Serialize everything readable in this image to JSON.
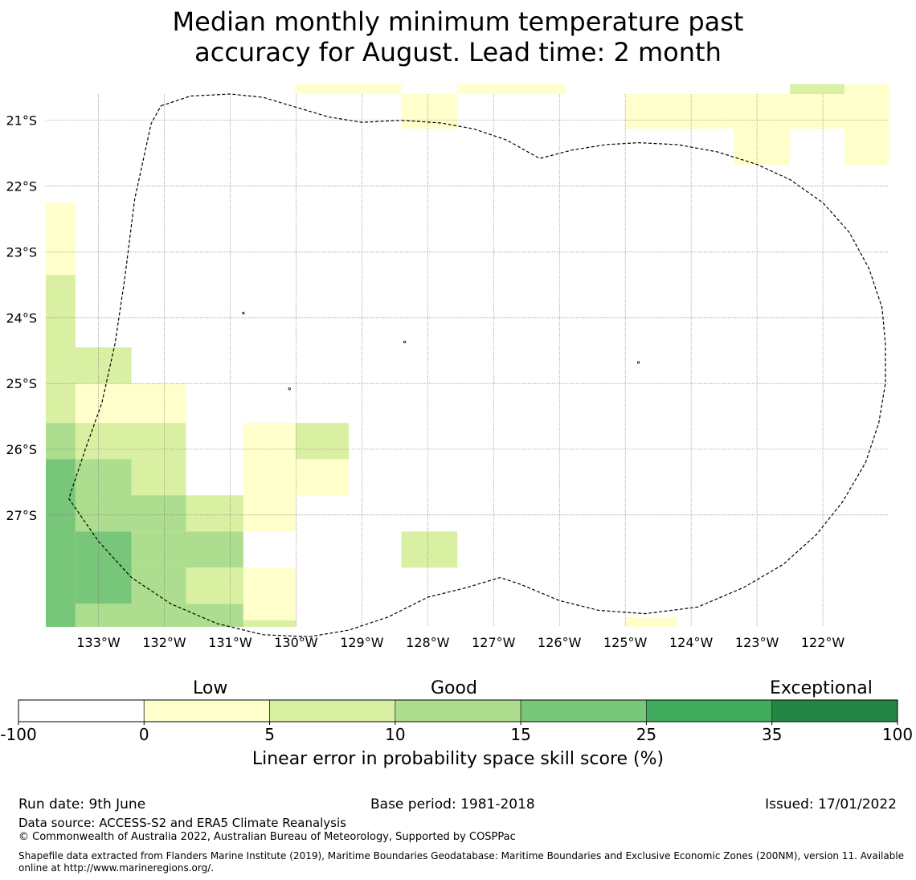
{
  "title": {
    "line1": "Median monthly minimum temperature past",
    "line2": "accuracy for August. Lead time: 2 month"
  },
  "map": {
    "lat_labels": [
      "21°S",
      "22°S",
      "23°S",
      "24°S",
      "25°S",
      "26°S",
      "27°S"
    ],
    "lon_labels": [
      "133°W",
      "132°W",
      "131°W",
      "130°W",
      "129°W",
      "128°W",
      "127°W",
      "126°W",
      "125°W",
      "124°W",
      "123°W",
      "122°W"
    ],
    "lon_range": [
      -133.8,
      -121.0
    ],
    "lat_range": [
      -20.6,
      -28.7
    ],
    "category_colors": [
      "#ffffff",
      "#ffffcc",
      "#d9f0a3",
      "#addd8e",
      "#78c679",
      "#41ab5d",
      "#238443"
    ],
    "cells": [
      {
        "lon0": -130.0,
        "lon1": -128.4,
        "lat0": -20.6,
        "lat1": -20.45,
        "cat": 1
      },
      {
        "lon0": -128.4,
        "lon1": -127.55,
        "lat0": -20.6,
        "lat1": -21.13,
        "cat": 1
      },
      {
        "lon0": -127.55,
        "lon1": -125.9,
        "lat0": -20.45,
        "lat1": -20.6,
        "cat": 1
      },
      {
        "lon0": -125.0,
        "lon1": -123.35,
        "lat0": -20.6,
        "lat1": -21.13,
        "cat": 1
      },
      {
        "lon0": -123.35,
        "lon1": -122.5,
        "lat0": -20.6,
        "lat1": -21.68,
        "cat": 1
      },
      {
        "lon0": -122.5,
        "lon1": -121.67,
        "lat0": -20.6,
        "lat1": -21.13,
        "cat": 1
      },
      {
        "lon0": -121.67,
        "lon1": -121.0,
        "lat0": -20.45,
        "lat1": -21.68,
        "cat": 1
      },
      {
        "lon0": -122.5,
        "lon1": -121.67,
        "lat0": -20.45,
        "lat1": -20.6,
        "cat": 2
      },
      {
        "lon0": -133.8,
        "lon1": -133.35,
        "lat0": -22.25,
        "lat1": -23.35,
        "cat": 1
      },
      {
        "lon0": -133.8,
        "lon1": -133.35,
        "lat0": -23.35,
        "lat1": -25.6,
        "cat": 2
      },
      {
        "lon0": -133.35,
        "lon1": -132.5,
        "lat0": -24.45,
        "lat1": -25.0,
        "cat": 2
      },
      {
        "lon0": -133.35,
        "lon1": -131.67,
        "lat0": -25.0,
        "lat1": -25.6,
        "cat": 1
      },
      {
        "lon0": -133.8,
        "lon1": -133.35,
        "lat0": -25.6,
        "lat1": -26.15,
        "cat": 3
      },
      {
        "lon0": -133.35,
        "lon1": -131.67,
        "lat0": -25.6,
        "lat1": -26.15,
        "cat": 2
      },
      {
        "lon0": -133.8,
        "lon1": -133.35,
        "lat0": -26.15,
        "lat1": -28.7,
        "cat": 4
      },
      {
        "lon0": -133.35,
        "lon1": -132.5,
        "lat0": -26.15,
        "lat1": -27.25,
        "cat": 3
      },
      {
        "lon0": -132.5,
        "lon1": -131.67,
        "lat0": -26.15,
        "lat1": -26.7,
        "cat": 2
      },
      {
        "lon0": -132.5,
        "lon1": -131.67,
        "lat0": -26.7,
        "lat1": -27.25,
        "cat": 3
      },
      {
        "lon0": -133.35,
        "lon1": -132.5,
        "lat0": -27.25,
        "lat1": -28.35,
        "cat": 4
      },
      {
        "lon0": -133.35,
        "lon1": -132.5,
        "lat0": -28.35,
        "lat1": -28.7,
        "cat": 3
      },
      {
        "lon0": -132.5,
        "lon1": -130.8,
        "lat0": -27.25,
        "lat1": -27.8,
        "cat": 3
      },
      {
        "lon0": -132.5,
        "lon1": -131.67,
        "lat0": -27.8,
        "lat1": -28.7,
        "cat": 3
      },
      {
        "lon0": -131.67,
        "lon1": -130.8,
        "lat0": -26.7,
        "lat1": -27.25,
        "cat": 2
      },
      {
        "lon0": -131.67,
        "lon1": -130.8,
        "lat0": -27.8,
        "lat1": -28.35,
        "cat": 2
      },
      {
        "lon0": -131.67,
        "lon1": -130.8,
        "lat0": -28.35,
        "lat1": -28.7,
        "cat": 3
      },
      {
        "lon0": -130.8,
        "lon1": -130.0,
        "lat0": -25.6,
        "lat1": -27.25,
        "cat": 1
      },
      {
        "lon0": -130.8,
        "lon1": -130.0,
        "lat0": -27.8,
        "lat1": -28.6,
        "cat": 1
      },
      {
        "lon0": -130.8,
        "lon1": -130.0,
        "lat0": -28.6,
        "lat1": -28.7,
        "cat": 2
      },
      {
        "lon0": -130.0,
        "lon1": -129.2,
        "lat0": -25.6,
        "lat1": -26.15,
        "cat": 2
      },
      {
        "lon0": -130.0,
        "lon1": -129.2,
        "lat0": -26.15,
        "lat1": -26.7,
        "cat": 1
      },
      {
        "lon0": -128.4,
        "lon1": -127.55,
        "lat0": -27.25,
        "lat1": -27.8,
        "cat": 2
      },
      {
        "lon0": -125.0,
        "lon1": -124.2,
        "lat0": -28.55,
        "lat1": -28.7,
        "cat": 1
      }
    ],
    "eez_boundary": [
      [
        -132.05,
        -20.78
      ],
      [
        -131.6,
        -20.63
      ],
      [
        -131.0,
        -20.6
      ],
      [
        -130.5,
        -20.65
      ],
      [
        -130.0,
        -20.8
      ],
      [
        -129.5,
        -20.95
      ],
      [
        -129.0,
        -21.03
      ],
      [
        -128.4,
        -21.0
      ],
      [
        -127.8,
        -21.04
      ],
      [
        -127.3,
        -21.13
      ],
      [
        -126.8,
        -21.3
      ],
      [
        -126.3,
        -21.58
      ],
      [
        -125.8,
        -21.45
      ],
      [
        -125.3,
        -21.37
      ],
      [
        -124.8,
        -21.34
      ],
      [
        -124.2,
        -21.37
      ],
      [
        -123.6,
        -21.48
      ],
      [
        -123.0,
        -21.67
      ],
      [
        -122.5,
        -21.9
      ],
      [
        -122.0,
        -22.25
      ],
      [
        -121.6,
        -22.7
      ],
      [
        -121.3,
        -23.25
      ],
      [
        -121.1,
        -23.85
      ],
      [
        -121.05,
        -24.4
      ],
      [
        -121.05,
        -25.0
      ],
      [
        -121.15,
        -25.6
      ],
      [
        -121.35,
        -26.2
      ],
      [
        -121.7,
        -26.8
      ],
      [
        -122.1,
        -27.3
      ],
      [
        -122.6,
        -27.75
      ],
      [
        -123.2,
        -28.1
      ],
      [
        -123.9,
        -28.4
      ],
      [
        -124.7,
        -28.5
      ],
      [
        -125.4,
        -28.45
      ],
      [
        -126.0,
        -28.3
      ],
      [
        -126.6,
        -28.05
      ],
      [
        -126.9,
        -27.95
      ],
      [
        -127.4,
        -28.1
      ],
      [
        -128.0,
        -28.25
      ],
      [
        -128.6,
        -28.55
      ],
      [
        -129.2,
        -28.75
      ],
      [
        -129.8,
        -28.85
      ],
      [
        -130.5,
        -28.82
      ],
      [
        -131.2,
        -28.65
      ],
      [
        -131.9,
        -28.35
      ],
      [
        -132.5,
        -27.95
      ],
      [
        -133.0,
        -27.4
      ],
      [
        -133.45,
        -26.75
      ],
      [
        -133.2,
        -26.0
      ],
      [
        -132.95,
        -25.3
      ],
      [
        -132.75,
        -24.4
      ],
      [
        -132.6,
        -23.4
      ],
      [
        -132.45,
        -22.2
      ],
      [
        -132.2,
        -21.05
      ],
      [
        -132.05,
        -20.78
      ]
    ],
    "islands": [
      {
        "lon": -130.8,
        "lat": -23.93
      },
      {
        "lon": -128.35,
        "lat": -24.37
      },
      {
        "lon": -124.8,
        "lat": -24.68
      },
      {
        "lon": -130.1,
        "lat": -25.08
      }
    ]
  },
  "colorbar": {
    "category_labels": [
      "Low",
      "Good",
      "Exceptional"
    ],
    "ticks": [
      "-100",
      "0",
      "5",
      "10",
      "15",
      "25",
      "35",
      "100"
    ],
    "colors": [
      "#ffffff",
      "#ffffcc",
      "#d9f0a3",
      "#addd8e",
      "#78c679",
      "#41ab5d",
      "#238443"
    ],
    "label": "Linear error in probability space skill score (%)"
  },
  "footer": {
    "run_date": "Run date: 9th June",
    "base_period": "Base period: 1981-2018",
    "issued": "Issued: 17/01/2022",
    "data_source": "Data source: ACCESS-S2 and ERA5 Climate Reanalysis",
    "copyright": "© Commonwealth of Australia 2022, Australian Bureau of Meteorology, Supported by COSPPac",
    "shapefile": "Shapefile data extracted from Flanders Marine Institute (2019), Maritime Boundaries Geodatabase: Maritime Boundaries and Exclusive Economic Zones (200NM), version 11. Available online at http://www.marineregions.org/."
  }
}
